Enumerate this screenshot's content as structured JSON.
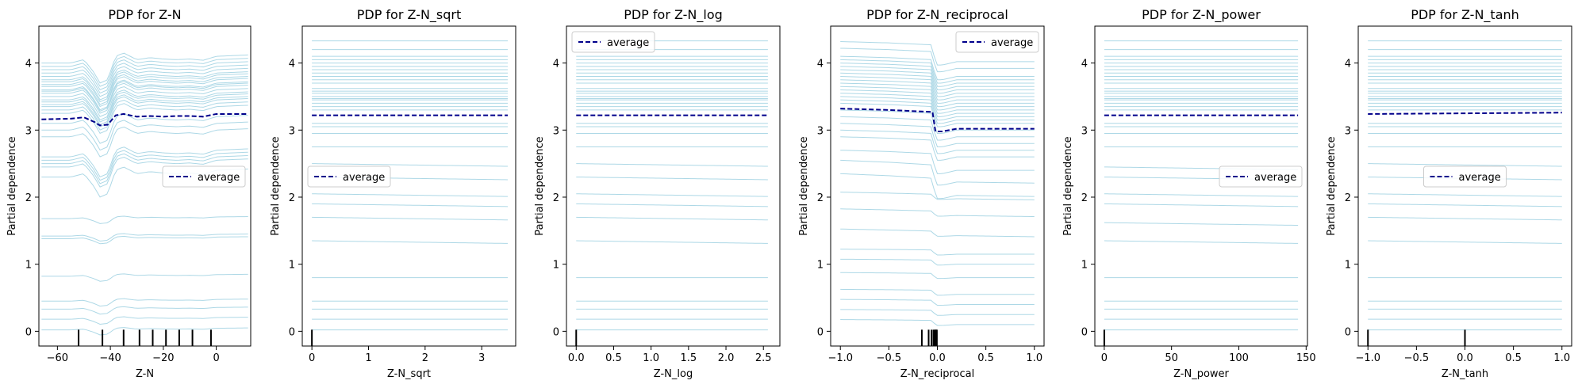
{
  "chart_data": [
    {
      "type": "line",
      "title": "PDP for Z-N",
      "xlabel": "Z-N",
      "ylabel": "Partial dependence",
      "xlim": [
        -67,
        13
      ],
      "ylim": [
        -0.22,
        4.55
      ],
      "xticks": [
        -60,
        -40,
        -20,
        0
      ],
      "xtick_labels": [
        "−60",
        "−40",
        "−20",
        "0"
      ],
      "yticks": [
        0,
        1,
        2,
        3,
        4
      ],
      "ytick_labels": [
        "0",
        "1",
        "2",
        "3",
        "4"
      ],
      "legend": {
        "label": "average",
        "position": "center-right"
      },
      "series": [
        {
          "name": "average",
          "x": [
            -66,
            -55,
            -50,
            -46,
            -44,
            -41,
            -38,
            -35,
            -30,
            -25,
            -20,
            -15,
            -10,
            -5,
            0,
            12
          ],
          "values": [
            3.16,
            3.17,
            3.19,
            3.12,
            3.07,
            3.08,
            3.22,
            3.24,
            3.2,
            3.21,
            3.2,
            3.21,
            3.21,
            3.2,
            3.24,
            3.24
          ]
        }
      ],
      "ice_shape": {
        "x": [
          -66,
          -55,
          -50,
          -46,
          -44,
          -41,
          -38,
          -35,
          -30,
          -25,
          -20,
          -15,
          -10,
          -5,
          0,
          12
        ],
        "dev": [
          0,
          0,
          0.05,
          -0.15,
          -0.3,
          -0.25,
          0.1,
          0.15,
          0.05,
          0.08,
          0.06,
          0.05,
          0.06,
          0.04,
          0.1,
          0.12
        ]
      },
      "ice_levels": [
        4.0,
        3.95,
        3.9,
        3.85,
        3.8,
        3.75,
        3.72,
        3.68,
        3.65,
        3.6,
        3.58,
        3.55,
        3.5,
        3.45,
        3.42,
        3.38,
        3.35,
        3.3,
        3.25,
        3.1,
        3.0,
        2.9,
        2.6,
        2.55,
        2.5,
        2.45,
        2.3,
        1.68,
        1.42,
        1.38,
        0.82,
        0.45,
        0.33,
        0.18,
        0.02
      ],
      "rug": [
        -52,
        -43,
        -35,
        -29,
        -24,
        -19,
        -14,
        -9,
        -2
      ]
    },
    {
      "type": "line",
      "title": "PDP for Z-N_sqrt",
      "xlabel": "Z-N_sqrt",
      "ylabel": "Partial dependence",
      "xlim": [
        -0.17,
        3.6
      ],
      "ylim": [
        -0.22,
        4.55
      ],
      "xticks": [
        0,
        1,
        2,
        3
      ],
      "xtick_labels": [
        "0",
        "1",
        "2",
        "3"
      ],
      "yticks": [
        0,
        1,
        2,
        3,
        4
      ],
      "ytick_labels": [
        "0",
        "1",
        "2",
        "3",
        "4"
      ],
      "legend": {
        "label": "average",
        "position": "center-left"
      },
      "series": [
        {
          "name": "average",
          "x": [
            0,
            3.46
          ],
          "values": [
            3.22,
            3.22
          ]
        }
      ],
      "ice_shape": {
        "x": [
          0,
          3.46
        ],
        "dev": [
          0,
          0
        ]
      },
      "ice_levels": [
        4.33,
        4.2,
        4.1,
        4.05,
        4.0,
        3.95,
        3.9,
        3.85,
        3.8,
        3.75,
        3.7,
        3.62,
        3.58,
        3.55,
        3.5,
        3.47,
        3.45,
        3.4,
        3.35,
        3.3,
        3.1,
        3.05,
        2.95,
        2.75,
        2.5,
        2.3,
        2.05,
        1.9,
        1.7,
        1.35,
        0.8,
        0.45,
        0.33,
        0.18,
        0.02
      ],
      "rug": [
        0
      ]
    },
    {
      "type": "line",
      "title": "PDP for Z-N_log",
      "xlabel": "Z-N_log",
      "ylabel": "Partial dependence",
      "xlim": [
        -0.13,
        2.72
      ],
      "ylim": [
        -0.22,
        4.55
      ],
      "xticks": [
        0,
        0.5,
        1,
        1.5,
        2,
        2.5
      ],
      "xtick_labels": [
        "0.0",
        "0.5",
        "1.0",
        "1.5",
        "2.0",
        "2.5"
      ],
      "yticks": [
        0,
        1,
        2,
        3,
        4
      ],
      "ytick_labels": [
        "0",
        "1",
        "2",
        "3",
        "4"
      ],
      "legend": {
        "label": "average",
        "position": "upper-left"
      },
      "series": [
        {
          "name": "average",
          "x": [
            0,
            2.56
          ],
          "values": [
            3.22,
            3.22
          ]
        }
      ],
      "ice_shape": {
        "x": [
          0,
          2.56
        ],
        "dev": [
          0,
          0
        ]
      },
      "ice_levels": [
        4.33,
        4.2,
        4.1,
        4.05,
        4.0,
        3.95,
        3.9,
        3.85,
        3.8,
        3.75,
        3.7,
        3.62,
        3.58,
        3.55,
        3.5,
        3.47,
        3.45,
        3.4,
        3.35,
        3.3,
        3.1,
        3.05,
        2.95,
        2.75,
        2.5,
        2.3,
        2.05,
        1.9,
        1.7,
        1.35,
        0.8,
        0.45,
        0.33,
        0.18,
        0.02
      ],
      "rug": [
        0
      ]
    },
    {
      "type": "line",
      "title": "PDP for Z-N_reciprocal",
      "xlabel": "Z-N_reciprocal",
      "ylabel": "Partial dependence",
      "xlim": [
        -1.1,
        1.1
      ],
      "ylim": [
        -0.22,
        4.55
      ],
      "xticks": [
        -1,
        -0.5,
        0,
        0.5,
        1
      ],
      "xtick_labels": [
        "−1.0",
        "−0.5",
        "0.0",
        "0.5",
        "1.0"
      ],
      "yticks": [
        0,
        1,
        2,
        3,
        4
      ],
      "ytick_labels": [
        "0",
        "1",
        "2",
        "3",
        "4"
      ],
      "legend": {
        "label": "average",
        "position": "upper-right"
      },
      "series": [
        {
          "name": "average",
          "x": [
            -1,
            -0.5,
            -0.2,
            -0.05,
            -0.02,
            0.05,
            0.2,
            0.5,
            1
          ],
          "values": [
            3.32,
            3.3,
            3.28,
            3.27,
            2.98,
            2.98,
            3.02,
            3.02,
            3.02
          ]
        }
      ],
      "ice_shape": {
        "x": [
          -1,
          -0.5,
          -0.2,
          -0.05,
          -0.02,
          0.05,
          0.2,
          0.5,
          1
        ],
        "dev": [
          0.1,
          0.08,
          0.06,
          0.05,
          -0.25,
          -0.25,
          -0.2,
          -0.2,
          -0.2
        ]
      },
      "ice_levels": [
        4.22,
        4.12,
        4.0,
        3.95,
        3.9,
        3.85,
        3.8,
        3.75,
        3.7,
        3.65,
        3.6,
        3.55,
        3.5,
        3.45,
        3.4,
        3.35,
        3.3,
        3.2,
        3.1,
        3.0,
        2.9,
        2.8,
        2.6,
        2.45,
        2.25,
        2.05,
        1.8,
        1.5,
        1.2,
        1.05,
        0.85,
        0.6,
        0.45,
        0.3,
        0.15
      ],
      "rug": [
        -0.16,
        -0.09,
        -0.06,
        -0.04,
        -0.03,
        -0.02,
        -0.015,
        -0.01,
        -0.005
      ]
    },
    {
      "type": "line",
      "title": "PDP for Z-N_power",
      "xlabel": "Z-N_power",
      "ylabel": "Partial dependence",
      "xlim": [
        -7,
        151
      ],
      "ylim": [
        -0.22,
        4.55
      ],
      "xticks": [
        0,
        50,
        100,
        150
      ],
      "xtick_labels": [
        "0",
        "50",
        "100",
        "150"
      ],
      "yticks": [
        0,
        1,
        2,
        3,
        4
      ],
      "ytick_labels": [
        "0",
        "1",
        "2",
        "3",
        "4"
      ],
      "legend": {
        "label": "average",
        "position": "center-right"
      },
      "series": [
        {
          "name": "average",
          "x": [
            0,
            144
          ],
          "values": [
            3.22,
            3.22
          ]
        }
      ],
      "ice_shape": {
        "x": [
          0,
          144
        ],
        "dev": [
          0,
          0
        ]
      },
      "ice_levels": [
        4.33,
        4.2,
        4.1,
        4.05,
        4.0,
        3.95,
        3.9,
        3.85,
        3.8,
        3.75,
        3.7,
        3.62,
        3.58,
        3.55,
        3.5,
        3.47,
        3.45,
        3.4,
        3.35,
        3.3,
        3.1,
        3.05,
        2.95,
        2.75,
        2.45,
        2.3,
        2.05,
        1.9,
        1.62,
        1.35,
        0.8,
        0.45,
        0.33,
        0.18,
        0.02
      ],
      "rug": [
        0
      ]
    },
    {
      "type": "line",
      "title": "PDP for Z-N_tanh",
      "xlabel": "Z-N_tanh",
      "ylabel": "Partial dependence",
      "xlim": [
        -1.1,
        1.1
      ],
      "ylim": [
        -0.22,
        4.55
      ],
      "xticks": [
        -1,
        -0.5,
        0,
        0.5,
        1
      ],
      "xtick_labels": [
        "−1.0",
        "−0.5",
        "0.0",
        "0.5",
        "1.0"
      ],
      "yticks": [
        0,
        1,
        2,
        3,
        4
      ],
      "ytick_labels": [
        "0",
        "1",
        "2",
        "3",
        "4"
      ],
      "legend": {
        "label": "average",
        "position": "center"
      },
      "series": [
        {
          "name": "average",
          "x": [
            -1,
            1
          ],
          "values": [
            3.24,
            3.26
          ]
        }
      ],
      "ice_shape": {
        "x": [
          -1,
          1
        ],
        "dev": [
          0,
          0
        ]
      },
      "ice_levels": [
        4.33,
        4.2,
        4.1,
        4.05,
        4.0,
        3.95,
        3.9,
        3.85,
        3.8,
        3.75,
        3.7,
        3.62,
        3.58,
        3.55,
        3.5,
        3.47,
        3.45,
        3.4,
        3.35,
        3.3,
        3.1,
        3.05,
        2.95,
        2.75,
        2.5,
        2.3,
        2.05,
        1.9,
        1.7,
        1.35,
        0.8,
        0.45,
        0.33,
        0.18,
        0.02
      ],
      "rug": [
        -1,
        0
      ]
    }
  ],
  "colors": {
    "ice": "#add8e6",
    "average": "#00008b",
    "rug": "#000000",
    "axes": "#000000",
    "legend_border": "#cccccc"
  }
}
